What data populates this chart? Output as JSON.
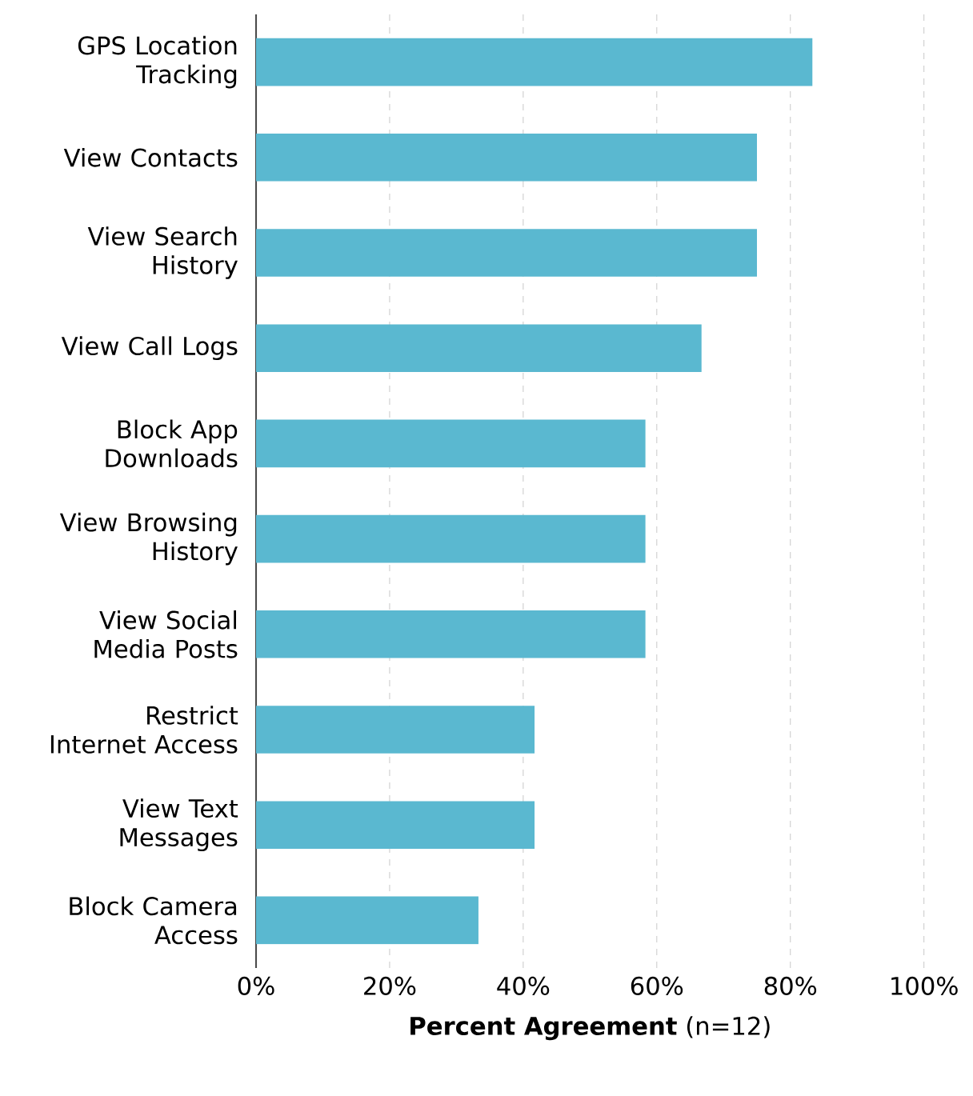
{
  "chart_data": {
    "type": "bar",
    "orientation": "horizontal",
    "xlabel": "**Percent Agreement** (n=12)",
    "categories": [
      "GPS Location Tracking",
      "View Contacts",
      "View Search History",
      "View Call Logs",
      "Block App Downloads",
      "View Browsing History",
      "View Social Media Posts",
      "Restrict Internet Access",
      "View Text Messages",
      "Block Camera Access"
    ],
    "values": [
      83.3,
      75,
      75,
      66.7,
      58.3,
      58.3,
      58.3,
      41.7,
      41.7,
      33.3
    ],
    "color": "#5ab8d0",
    "xlim": [
      0,
      100
    ],
    "xticks": [
      {
        "value": 0,
        "label": "0%"
      },
      {
        "value": 20,
        "label": "20%"
      },
      {
        "value": 40,
        "label": "40%"
      },
      {
        "value": 60,
        "label": "60%"
      },
      {
        "value": 80,
        "label": "80%"
      },
      {
        "value": 100,
        "label": "100%"
      }
    ],
    "grid": "x"
  }
}
